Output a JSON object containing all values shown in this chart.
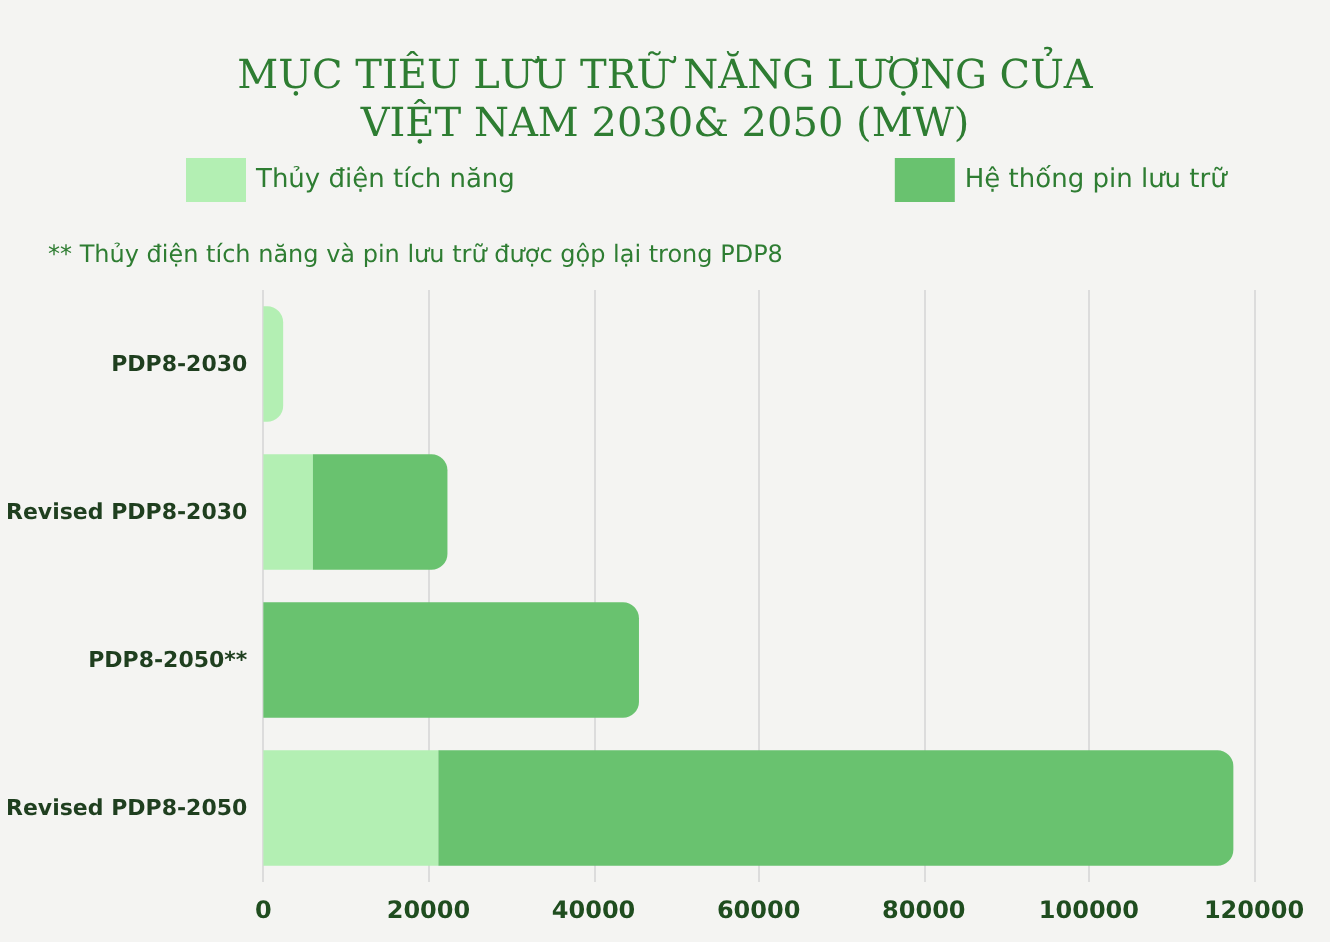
{
  "chart_data": {
    "type": "bar",
    "orientation": "horizontal",
    "stacked": true,
    "title": "MỤC TIÊU LƯU TRỮ NĂNG LƯỢNG CỦA\nVIỆT NAM 2030& 2050 (MW)",
    "annotations": [
      "** Thủy điện tích năng và pin lưu trữ được gộp lại trong PDP8"
    ],
    "categories": [
      "PDP8-2030",
      "Revised PDP8-2030",
      "PDP8-2050**",
      "Revised PDP8-2050"
    ],
    "series": [
      {
        "name": "Thủy điện tích năng",
        "color": "#b3efb3",
        "values": [
          2400,
          6000,
          null,
          21200
        ]
      },
      {
        "name": "Hệ thống pin lưu trữ",
        "color": "#69c26f",
        "values": [
          null,
          16300,
          45500,
          96300
        ]
      }
    ],
    "xlim": [
      0,
      120000
    ],
    "xticks": [
      0,
      20000,
      40000,
      60000,
      80000,
      100000,
      120000
    ],
    "grid": "x",
    "legend": "top"
  }
}
